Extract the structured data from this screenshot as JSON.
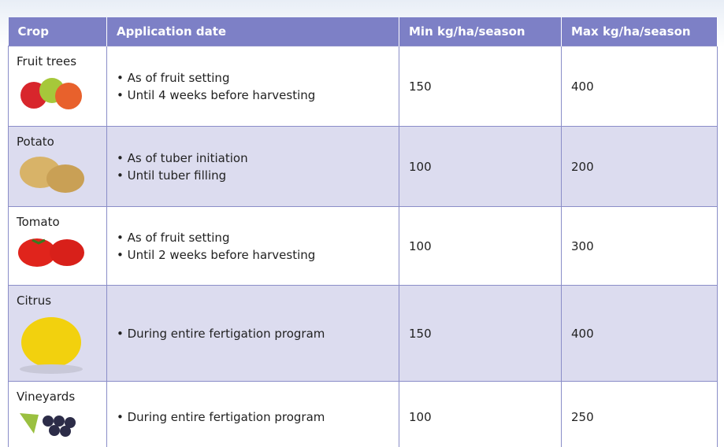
{
  "table": {
    "header": [
      "Crop",
      "Application date",
      "Min kg/ha/season",
      "Max kg/ha/season"
    ],
    "rows": [
      [
        "Fruit trees",
        [
          "• As of fruit setting",
          "• Until 4 weeks before harvesting"
        ],
        "150",
        "400"
      ],
      [
        "Potato",
        [
          "• As of tuber initiation",
          "• Until tuber filling"
        ],
        "100",
        "200"
      ],
      [
        "Tomato",
        [
          "• As of fruit setting",
          "• Until 2 weeks before harvesting"
        ],
        "100",
        "300"
      ],
      [
        "Citrus",
        [
          "• During entire fertigation program"
        ],
        "150",
        "400"
      ],
      [
        "Vineyards",
        [
          "• During entire fertigation program"
        ],
        "100",
        "250"
      ]
    ]
  }
}
